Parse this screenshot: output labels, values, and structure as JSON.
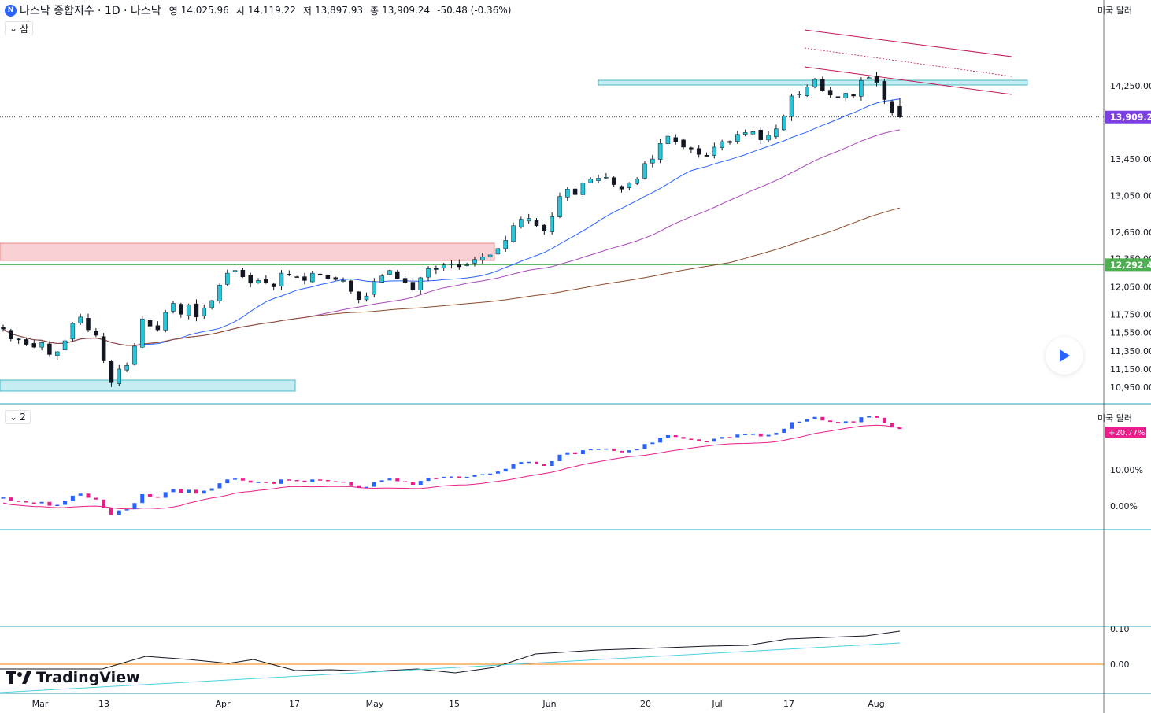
{
  "header": {
    "symbol": "나스닥 종합지수 · 1D · 나스닥",
    "open_label": "영",
    "open_value": "14,025.96",
    "high_label": "시",
    "high_value": "14,119.22",
    "low_label": "저",
    "low_value": "13,897.93",
    "close_label": "종",
    "close_value": "13,909.24",
    "change": "-50.48 (-0.36%)"
  },
  "pane1": {
    "toggle_label": "삼",
    "currency": "미국 달러"
  },
  "pane2": {
    "toggle_label": "2",
    "currency": "미국 달러"
  },
  "price_axis": {
    "ticks": [
      "14,250.00",
      "13,450.00",
      "13,050.00",
      "12,650.00",
      "12,050.00",
      "11,750.00",
      "11,550.00",
      "11,350.00",
      "11,150.00",
      "10,950.00"
    ],
    "last_price": "13,909.24",
    "hline_price": "12,292.49",
    "cropped_tick": "12,350.00"
  },
  "pane2_axis": {
    "ticks": [
      "10.00%",
      "0.00%"
    ],
    "badge": "+20.77%"
  },
  "pane4_axis": {
    "ticks": [
      "0.10",
      "0.00"
    ]
  },
  "time_axis": {
    "labels": [
      "Mar",
      "13",
      "Apr",
      "17",
      "May",
      "15",
      "Jun",
      "20",
      "Jul",
      "17",
      "Aug"
    ]
  },
  "branding": {
    "name": "TradingView"
  },
  "colors": {
    "up": "#26c6da",
    "down": "#131722",
    "ma20": "#2962ff",
    "ma50": "#ab47bc",
    "ma100": "#8d4a2a",
    "pane2_up": "#2962ff",
    "pane2_down": "#e91e8c",
    "hline": "#4caf50",
    "last_badge": "#7b3fe4"
  },
  "chart_data": {
    "type": "candlestick",
    "title": "나스닥 종합지수 · 1D · 나스닥",
    "x": [
      "Mar",
      "13",
      "Apr",
      "17",
      "May",
      "15",
      "Jun",
      "20",
      "Jul",
      "17",
      "Aug"
    ],
    "ohlc_last": {
      "open": 14025.96,
      "high": 14119.22,
      "low": 13897.93,
      "close": 13909.24
    },
    "close_series": [
      11590,
      11480,
      11470,
      11420,
      11390,
      11440,
      11310,
      11340,
      11460,
      11650,
      11720,
      11580,
      11520,
      11240,
      11000,
      11150,
      11190,
      11400,
      11700,
      11620,
      11580,
      11770,
      11870,
      11750,
      11850,
      11720,
      11820,
      11900,
      12070,
      12200,
      12230,
      12160,
      12090,
      12120,
      12100,
      12050,
      12200,
      12180,
      12160,
      12120,
      12200,
      12180,
      12140,
      12130,
      12120,
      12000,
      11910,
      11950,
      12110,
      12170,
      12230,
      12140,
      12100,
      12020,
      12150,
      12250,
      12240,
      12290,
      12300,
      12270,
      12290,
      12350,
      12380,
      12400,
      12470,
      12560,
      12720,
      12790,
      12800,
      12720,
      12660,
      12820,
      13040,
      13120,
      13060,
      13190,
      13230,
      13240,
      13250,
      13170,
      13120,
      13190,
      13230,
      13400,
      13450,
      13620,
      13700,
      13640,
      13580,
      13560,
      13500,
      13480,
      13580,
      13640,
      13630,
      13720,
      13740,
      13750,
      13660,
      13710,
      13780,
      13920,
      14140,
      14160,
      14240,
      14320,
      14200,
      14150,
      14120,
      14170,
      14140,
      14310,
      14340,
      14290,
      14100,
      13960,
      13909.24
    ],
    "yticks": [
      14250,
      13450,
      13050,
      12650,
      12050,
      11750,
      11550,
      11350,
      11150,
      10950
    ],
    "hline": 12292.49,
    "last": 13909.24,
    "pane2": {
      "ticks": [
        "10.00%",
        "0.00%"
      ],
      "last": "+20.77%"
    },
    "pane4": {
      "ticks": [
        "0.10",
        "0.00"
      ]
    }
  }
}
